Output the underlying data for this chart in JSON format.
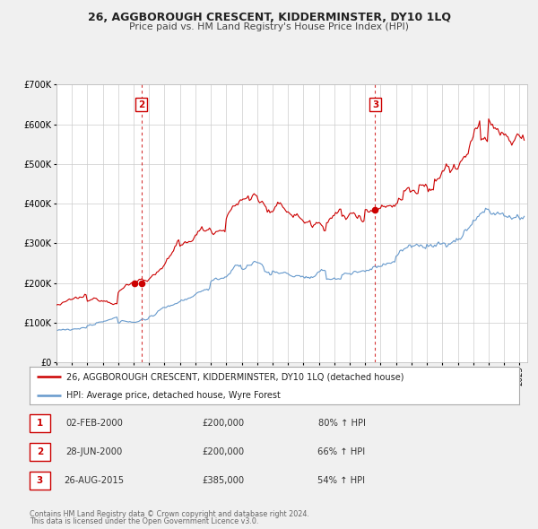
{
  "title": "26, AGGBOROUGH CRESCENT, KIDDERMINSTER, DY10 1LQ",
  "subtitle": "Price paid vs. HM Land Registry's House Price Index (HPI)",
  "red_label": "26, AGGBOROUGH CRESCENT, KIDDERMINSTER, DY10 1LQ (detached house)",
  "blue_label": "HPI: Average price, detached house, Wyre Forest",
  "transactions": [
    {
      "num": 1,
      "date": "02-FEB-2000",
      "price": "£200,000",
      "pct": "80%",
      "dir": "↑",
      "ref": "HPI",
      "year": 2000.08,
      "value": 200000
    },
    {
      "num": 2,
      "date": "28-JUN-2000",
      "price": "£200,000",
      "pct": "66%",
      "dir": "↑",
      "ref": "HPI",
      "year": 2000.49,
      "value": 200000
    },
    {
      "num": 3,
      "date": "26-AUG-2015",
      "price": "£385,000",
      "pct": "54%",
      "dir": "↑",
      "ref": "HPI",
      "year": 2015.65,
      "value": 385000
    }
  ],
  "footer1": "Contains HM Land Registry data © Crown copyright and database right 2024.",
  "footer2": "This data is licensed under the Open Government Licence v3.0.",
  "red_color": "#cc0000",
  "blue_color": "#6699cc",
  "background_color": "#f0f0f0",
  "plot_bg_color": "#ffffff",
  "grid_color": "#cccccc",
  "ylim": [
    0,
    700000
  ],
  "xmin": 1995.0,
  "xmax": 2025.5
}
